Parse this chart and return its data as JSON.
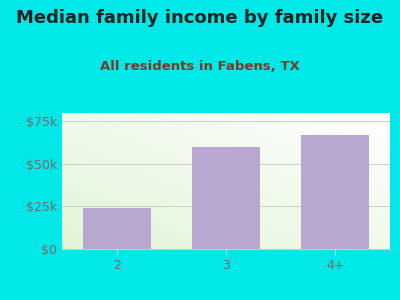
{
  "title": "Median family income by family size",
  "subtitle": "All residents in Fabens, TX",
  "categories": [
    "2",
    "3",
    "4+"
  ],
  "values": [
    24000,
    60000,
    67000
  ],
  "bar_color": "#b8a8d0",
  "background_color": "#00e8e8",
  "title_color": "#222222",
  "subtitle_color": "#7a3a28",
  "tick_color": "#7a6a6a",
  "grid_color": "#cccccc",
  "ylim": [
    0,
    80000
  ],
  "yticks": [
    0,
    25000,
    50000,
    75000
  ],
  "ytick_labels": [
    "$0",
    "$25k",
    "$50k",
    "$75k"
  ],
  "title_fontsize": 13,
  "subtitle_fontsize": 9.5,
  "tick_fontsize": 9
}
